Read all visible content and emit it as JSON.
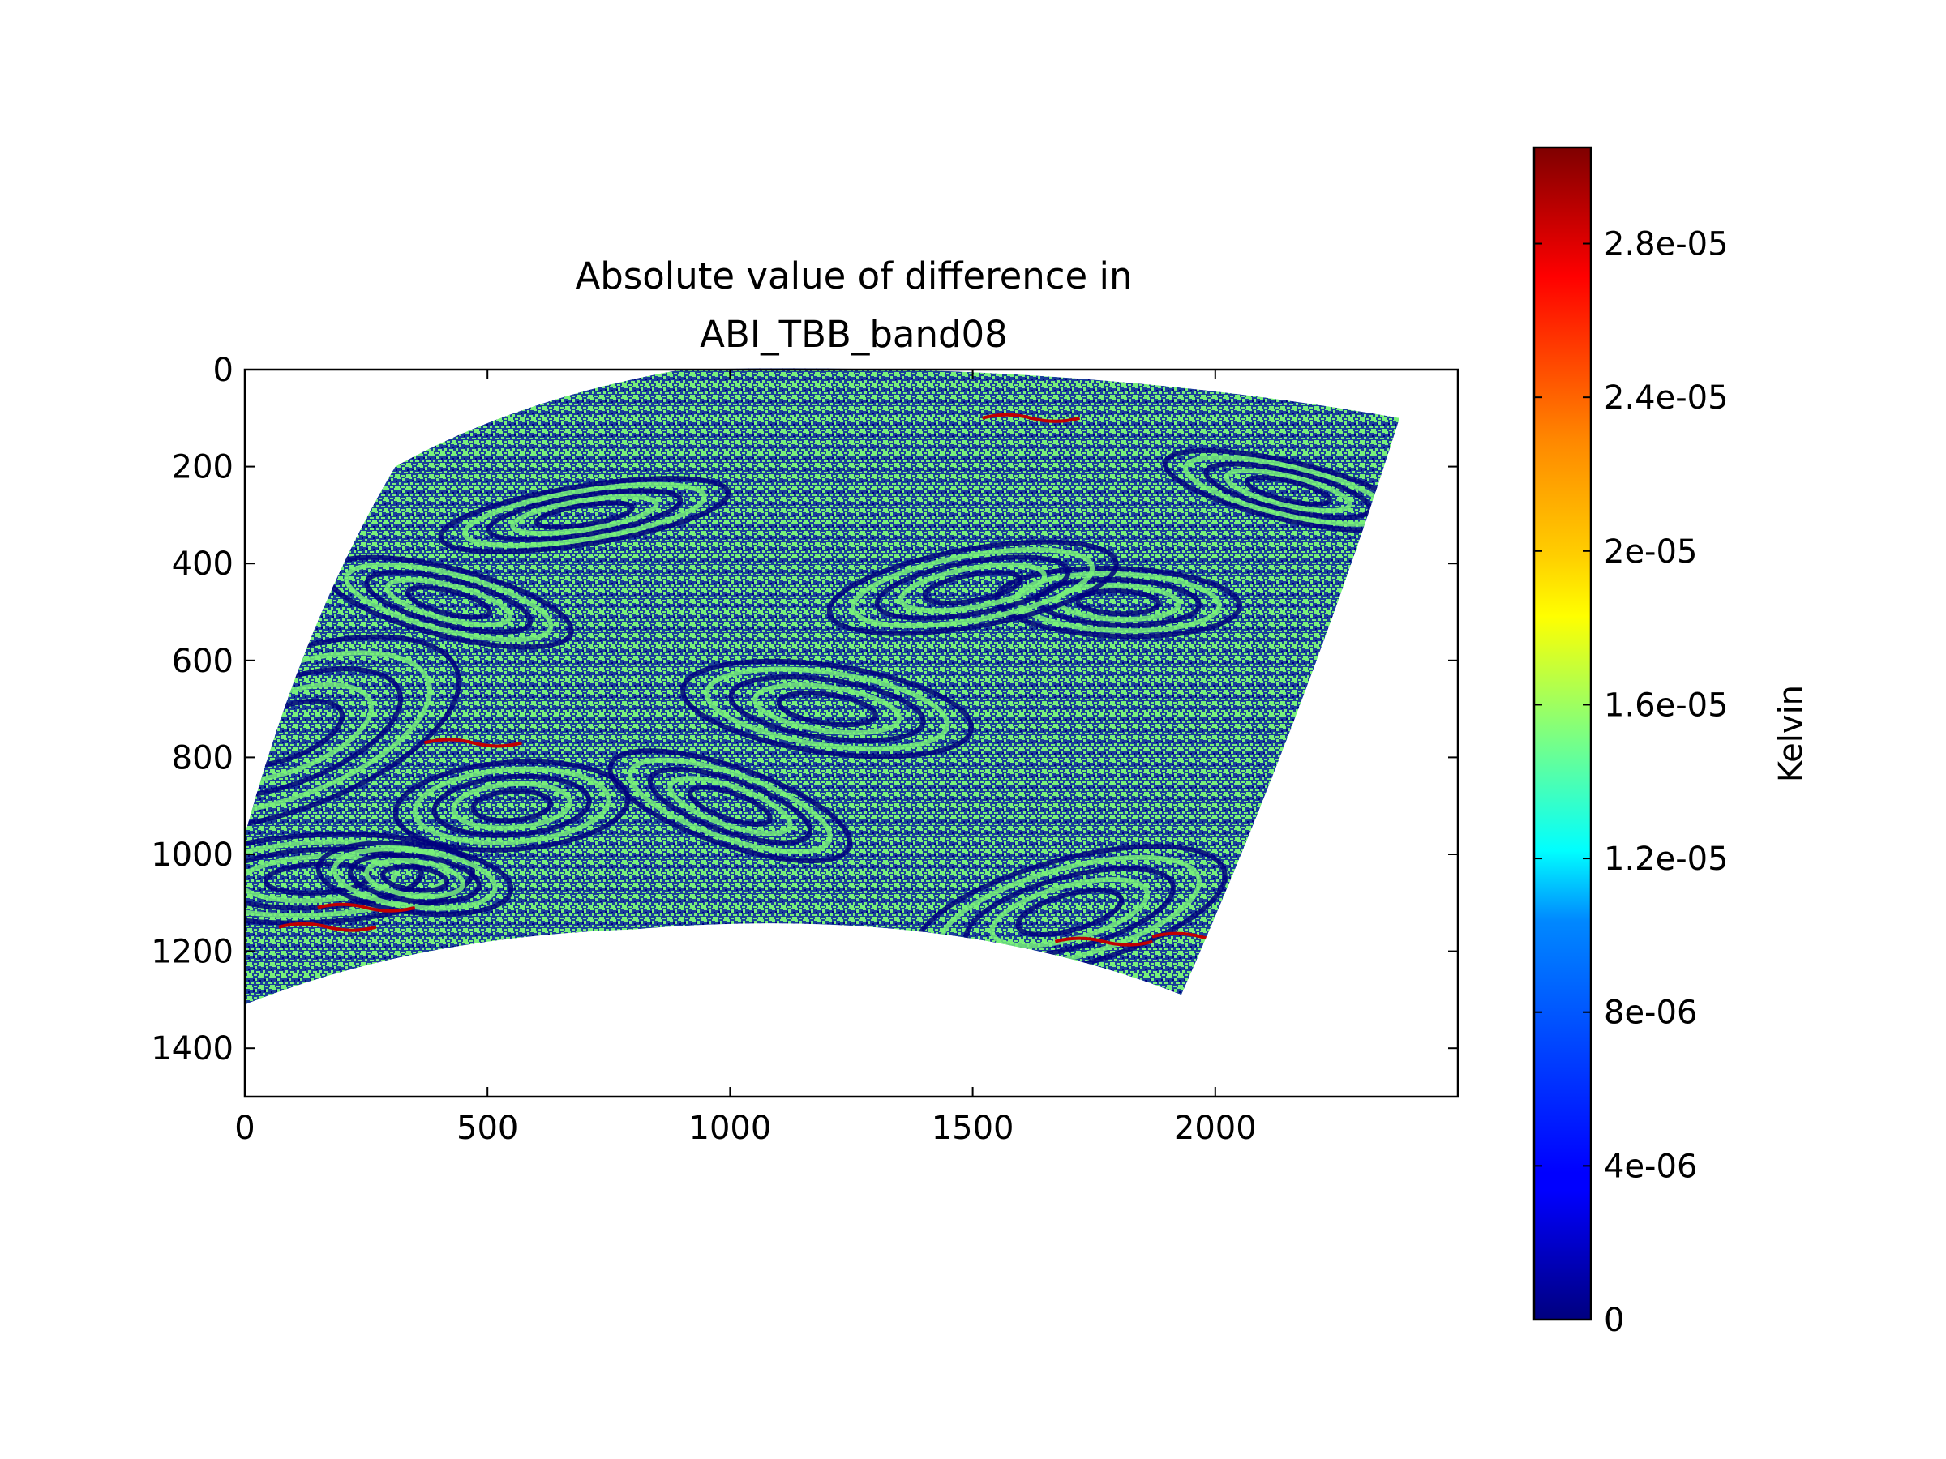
{
  "chart_data": {
    "type": "heatmap",
    "title_lines": [
      "Absolute value of difference in",
      "ABI_TBB_band08"
    ],
    "x_axis": {
      "lim": [
        0,
        2500
      ],
      "ticks": [
        0,
        500,
        1000,
        1500,
        2000
      ]
    },
    "y_axis": {
      "lim": [
        1500,
        0
      ],
      "inverted": true,
      "ticks": [
        0,
        200,
        400,
        600,
        800,
        1000,
        1200,
        1400
      ]
    },
    "data_footprint": {
      "description_points": [
        [
          0,
          1310
        ],
        [
          0,
          960
        ],
        [
          310,
          200
        ],
        [
          900,
          0
        ],
        [
          2380,
          100
        ],
        [
          1930,
          1290
        ],
        [
          1200,
          1150
        ]
      ],
      "dominant_values": [
        0.0,
        1.45e-05
      ],
      "sparse_high_values": [
        2.9e-05
      ]
    },
    "colormap": "jet",
    "colorbar": {
      "label": "Kelvin",
      "vmin": 0,
      "vmax": 3.05e-05,
      "ticks": [
        {
          "value": 0,
          "label": "0"
        },
        {
          "value": 4e-06,
          "label": "4e-06"
        },
        {
          "value": 8e-06,
          "label": "8e-06"
        },
        {
          "value": 1.2e-05,
          "label": "1.2e-05"
        },
        {
          "value": 1.6e-05,
          "label": "1.6e-05"
        },
        {
          "value": 2e-05,
          "label": "2e-05"
        },
        {
          "value": 2.4e-05,
          "label": "2.4e-05"
        },
        {
          "value": 2.8e-05,
          "label": "2.8e-05"
        }
      ]
    },
    "grid": false
  }
}
